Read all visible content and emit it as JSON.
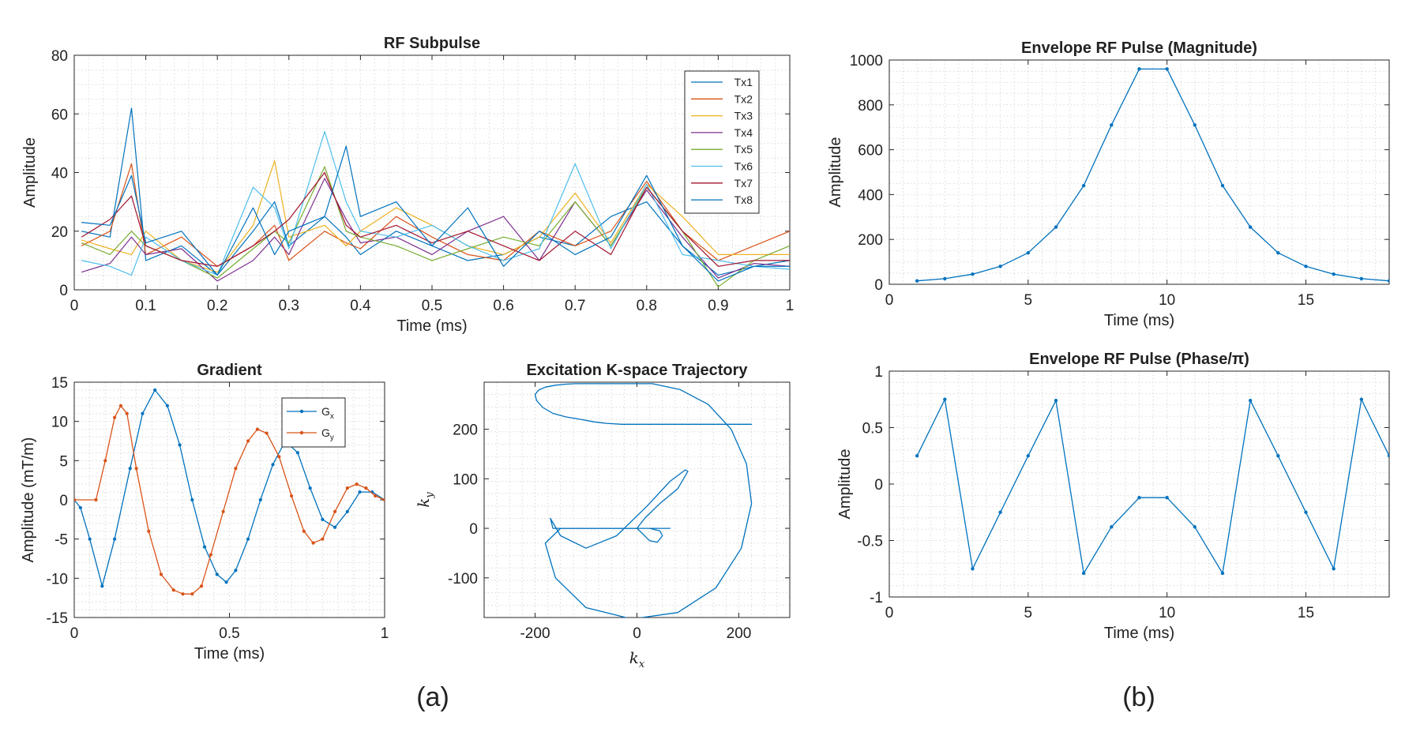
{
  "labels": {
    "a": "(a)",
    "b": "(b)"
  },
  "chart_data": [
    {
      "id": "rf",
      "type": "line",
      "title": "RF Subpulse",
      "xlabel": "Time (ms)",
      "ylabel": "Amplitude",
      "xlim": [
        0,
        1
      ],
      "ylim": [
        0,
        80
      ],
      "xticks": [
        0,
        0.1,
        0.2,
        0.3,
        0.4,
        0.5,
        0.6,
        0.7,
        0.8,
        0.9,
        1
      ],
      "yticks": [
        0,
        20,
        40,
        60,
        80
      ],
      "grid": true,
      "legend": "top-right",
      "x": [
        0.01,
        0.05,
        0.08,
        0.1,
        0.15,
        0.2,
        0.25,
        0.28,
        0.3,
        0.35,
        0.38,
        0.4,
        0.45,
        0.5,
        0.55,
        0.6,
        0.65,
        0.7,
        0.75,
        0.8,
        0.85,
        0.9,
        0.95,
        1.0
      ],
      "series": [
        {
          "name": "Tx1",
          "color": "#0072BD",
          "values": [
            20,
            18,
            62,
            10,
            15,
            5,
            20,
            30,
            15,
            25,
            18,
            12,
            20,
            15,
            10,
            12,
            18,
            15,
            25,
            30,
            15,
            5,
            8,
            10
          ]
        },
        {
          "name": "Tx2",
          "color": "#D95319",
          "values": [
            15,
            20,
            43,
            12,
            18,
            8,
            15,
            22,
            10,
            20,
            16,
            14,
            25,
            18,
            12,
            10,
            20,
            15,
            20,
            37,
            20,
            10,
            15,
            20
          ]
        },
        {
          "name": "Tx3",
          "color": "#EDB120",
          "values": [
            17,
            14,
            12,
            20,
            10,
            6,
            22,
            44,
            18,
            22,
            15,
            20,
            28,
            22,
            15,
            12,
            18,
            33,
            16,
            36,
            25,
            12,
            12,
            12
          ]
        },
        {
          "name": "Tx4",
          "color": "#7E2F8E",
          "values": [
            6,
            9,
            18,
            12,
            14,
            3,
            10,
            18,
            12,
            38,
            24,
            16,
            18,
            12,
            20,
            25,
            10,
            30,
            15,
            34,
            18,
            4,
            9,
            8
          ]
        },
        {
          "name": "Tx5",
          "color": "#77AC30",
          "values": [
            16,
            12,
            20,
            15,
            10,
            4,
            14,
            20,
            16,
            42,
            20,
            18,
            15,
            10,
            14,
            18,
            15,
            30,
            15,
            35,
            20,
            1,
            10,
            15
          ]
        },
        {
          "name": "Tx6",
          "color": "#4DBEEE",
          "values": [
            10,
            8,
            5,
            18,
            10,
            5,
            35,
            28,
            14,
            54,
            30,
            20,
            18,
            22,
            15,
            10,
            14,
            43,
            14,
            36,
            12,
            10,
            8,
            7
          ]
        },
        {
          "name": "Tx7",
          "color": "#A2142F",
          "values": [
            18,
            24,
            32,
            15,
            10,
            8,
            15,
            20,
            24,
            40,
            22,
            18,
            22,
            16,
            20,
            15,
            10,
            20,
            12,
            35,
            20,
            8,
            10,
            10
          ]
        },
        {
          "name": "Tx8",
          "color": "#0072BD",
          "values": [
            23,
            22,
            39,
            16,
            20,
            5,
            28,
            12,
            20,
            25,
            49,
            25,
            30,
            15,
            28,
            8,
            20,
            12,
            18,
            39,
            15,
            3,
            8,
            8
          ]
        }
      ]
    },
    {
      "id": "grad",
      "type": "line",
      "title": "Gradient",
      "xlabel": "Time (ms)",
      "ylabel": "Amplitude (mT/m)",
      "xlim": [
        0,
        1
      ],
      "ylim": [
        -15,
        15
      ],
      "xticks": [
        0,
        0.5,
        1
      ],
      "yticks": [
        -15,
        -10,
        -5,
        0,
        5,
        10,
        15
      ],
      "grid": true,
      "legend": "top-right",
      "series": [
        {
          "name": "G_x",
          "legend_main": "G",
          "legend_sub": "x",
          "color": "#0072BD",
          "x": [
            0,
            0.02,
            0.05,
            0.09,
            0.13,
            0.18,
            0.22,
            0.26,
            0.3,
            0.34,
            0.38,
            0.42,
            0.46,
            0.49,
            0.52,
            0.56,
            0.6,
            0.64,
            0.68,
            0.72,
            0.76,
            0.8,
            0.84,
            0.88,
            0.92,
            0.96,
            1.0
          ],
          "values": [
            0,
            -1,
            -5,
            -11,
            -5,
            4,
            11,
            14,
            12,
            7,
            0,
            -6,
            -9.5,
            -10.5,
            -9,
            -5,
            0,
            4.5,
            7.5,
            6,
            1.5,
            -2.5,
            -3.5,
            -1.5,
            1,
            1,
            0
          ]
        },
        {
          "name": "G_y",
          "legend_main": "G",
          "legend_sub": "y",
          "color": "#D95319",
          "x": [
            0,
            0.07,
            0.1,
            0.13,
            0.15,
            0.17,
            0.2,
            0.24,
            0.28,
            0.32,
            0.35,
            0.38,
            0.41,
            0.44,
            0.48,
            0.52,
            0.56,
            0.59,
            0.62,
            0.66,
            0.7,
            0.74,
            0.77,
            0.8,
            0.84,
            0.88,
            0.91,
            0.94,
            0.97,
            1.0
          ],
          "values": [
            0,
            0,
            5,
            10.5,
            12,
            11,
            4,
            -4,
            -9.5,
            -11.5,
            -12,
            -12,
            -11,
            -7,
            -1.5,
            4,
            7.5,
            9,
            8.5,
            5.5,
            0.5,
            -4,
            -5.5,
            -5,
            -1.5,
            1.5,
            2,
            1.5,
            0.5,
            0
          ]
        }
      ]
    },
    {
      "id": "kspace",
      "type": "line",
      "title": "Excitation K-space Trajectory",
      "xlabel_main": "k",
      "xlabel_sub": "x",
      "ylabel_main": "k",
      "ylabel_sub": "y",
      "xlim": [
        -300,
        300
      ],
      "ylim": [
        -180,
        295
      ],
      "xticks": [
        -200,
        0,
        200
      ],
      "yticks": [
        -100,
        0,
        100,
        200
      ],
      "grid": true,
      "series": [
        {
          "color": "#0072BD",
          "x": [
            0,
            -130,
            -165,
            -170,
            -150,
            -100,
            -40,
            20,
            65,
            95,
            100,
            80,
            45,
            15,
            0,
            0,
            10,
            25,
            40,
            50,
            45,
            25,
            5,
            -5,
            5,
            25,
            50,
            65,
            60,
            40,
            15,
            0,
            0,
            0
          ],
          "values": [
            0,
            0,
            0,
            20,
            -15,
            -40,
            -15,
            45,
            95,
            118,
            115,
            80,
            50,
            20,
            0,
            0,
            -10,
            -25,
            -28,
            -15,
            -5,
            0,
            0,
            0,
            0,
            0,
            0,
            0,
            0,
            0,
            0,
            0,
            0,
            0
          ]
        },
        {
          "color": "#0072BD",
          "x": [
            0,
            -150,
            -180,
            -160,
            -100,
            -10,
            80,
            155,
            205,
            225,
            215,
            185,
            140,
            85,
            30,
            -20,
            -60,
            -80,
            -90,
            -100,
            -120,
            -140,
            -160,
            -180,
            -193,
            -200,
            -197,
            -185,
            -165,
            -140,
            -110,
            -85,
            -60,
            -30,
            0,
            30,
            60,
            90,
            120,
            155,
            190,
            215,
            225,
            210,
            170,
            120,
            60,
            0
          ],
          "values": [
            0,
            0,
            -30,
            -100,
            -160,
            -183,
            -170,
            -120,
            -40,
            50,
            130,
            200,
            250,
            280,
            292,
            292,
            292,
            292,
            292,
            292,
            292,
            291,
            289,
            285,
            279,
            270,
            258,
            244,
            232,
            225,
            220,
            215,
            212,
            210,
            210,
            210,
            210,
            210,
            210,
            210,
            210,
            210,
            210,
            210,
            210,
            210,
            210,
            210
          ]
        }
      ]
    },
    {
      "id": "mag",
      "type": "line",
      "title": "Envelope RF Pulse (Magnitude)",
      "xlabel": "Time (ms)",
      "ylabel": "Amplitude",
      "xlim": [
        0,
        18
      ],
      "ylim": [
        0,
        1000
      ],
      "xticks": [
        0,
        5,
        10,
        15
      ],
      "yticks": [
        0,
        200,
        400,
        600,
        800,
        1000
      ],
      "grid": true,
      "series": [
        {
          "color": "#0072BD",
          "x": [
            1,
            2,
            3,
            4,
            5,
            6,
            7,
            8,
            9,
            10,
            11,
            12,
            13,
            14,
            15,
            16,
            17,
            18
          ],
          "values": [
            15,
            25,
            45,
            80,
            140,
            255,
            440,
            710,
            960,
            960,
            710,
            440,
            255,
            140,
            80,
            45,
            25,
            15
          ]
        }
      ]
    },
    {
      "id": "phase",
      "type": "line",
      "title": "Envelope RF Pulse (Phase/π)",
      "xlabel": "Time (ms)",
      "ylabel": "Amplitude",
      "xlim": [
        0,
        18
      ],
      "ylim": [
        -1,
        1
      ],
      "xticks": [
        0,
        5,
        10,
        15
      ],
      "yticks": [
        -1,
        -0.5,
        0,
        0.5,
        1
      ],
      "grid": true,
      "series": [
        {
          "color": "#0072BD",
          "x": [
            1,
            2,
            3,
            4,
            5,
            6,
            7,
            8,
            9,
            10,
            11,
            12,
            13,
            14,
            15,
            16,
            17,
            18
          ],
          "values": [
            0.25,
            0.75,
            -0.75,
            -0.25,
            0.25,
            0.74,
            -0.79,
            -0.38,
            -0.12,
            -0.12,
            -0.38,
            -0.79,
            0.74,
            0.25,
            -0.25,
            -0.75,
            0.75,
            0.25
          ]
        }
      ]
    }
  ]
}
